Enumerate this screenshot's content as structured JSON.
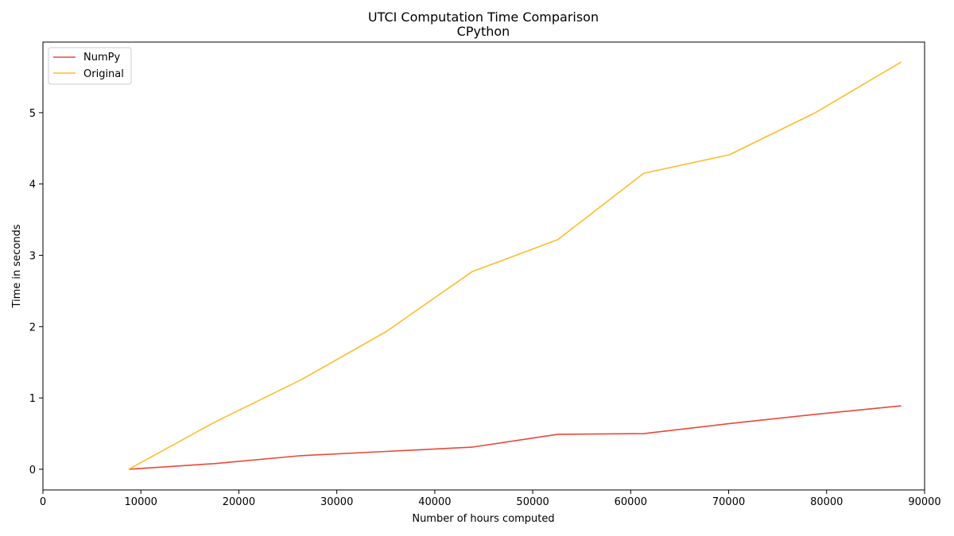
{
  "chart_data": {
    "type": "line",
    "title": "UTCI Computation Time Comparison",
    "subtitle": "CPython",
    "xlabel": "Number of hours computed",
    "ylabel": "Time in seconds",
    "xlim": [
      0,
      90000
    ],
    "ylim": [
      -0.29,
      5.99
    ],
    "xticks": [
      0,
      10000,
      20000,
      30000,
      40000,
      50000,
      60000,
      70000,
      80000,
      90000
    ],
    "yticks": [
      0,
      1,
      2,
      3,
      4,
      5
    ],
    "grid": false,
    "legend_position": "top-left",
    "x": [
      8760,
      17520,
      26280,
      35040,
      43800,
      52560,
      61320,
      70080,
      78840,
      87600
    ],
    "series": [
      {
        "name": "NumPy",
        "color": "#e8483a",
        "values": [
          0.0,
          0.08,
          0.19,
          0.25,
          0.31,
          0.49,
          0.5,
          0.64,
          0.77,
          0.89
        ]
      },
      {
        "name": "Original",
        "color": "#fbbd2d",
        "values": [
          0.0,
          0.66,
          1.25,
          1.93,
          2.77,
          3.22,
          4.15,
          4.41,
          5.0,
          5.71
        ]
      }
    ]
  }
}
